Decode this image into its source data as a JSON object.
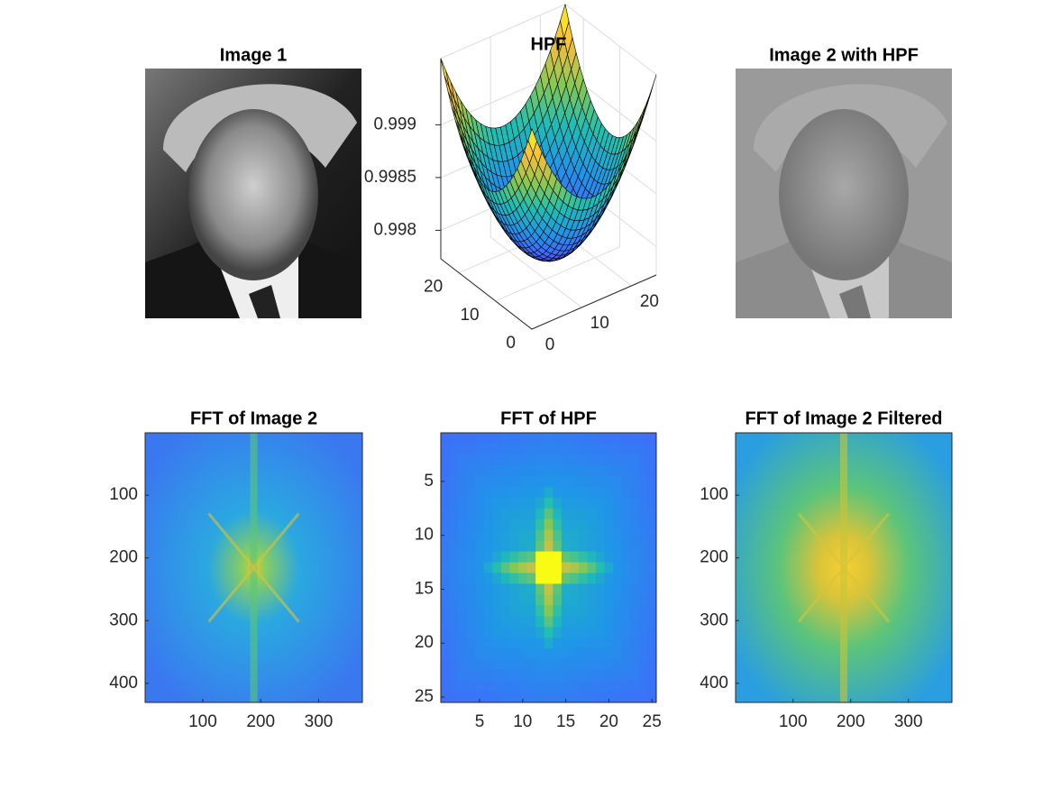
{
  "chart_data": [
    {
      "type": "image",
      "title": "Image 1",
      "colormap": "gray"
    },
    {
      "type": "surface",
      "title": "HPF",
      "xlim": [
        0,
        25
      ],
      "ylim": [
        0,
        25
      ],
      "zlim": [
        0.99773,
        0.99963
      ],
      "xticks": [
        0,
        10,
        20
      ],
      "yticks": [
        0,
        10,
        20
      ],
      "zticks": [
        0.998,
        0.9985,
        0.999
      ],
      "colormap": "parula",
      "grid": true
    },
    {
      "type": "image",
      "title": "Image 2 with HPF",
      "colormap": "gray"
    },
    {
      "type": "heatmap",
      "title": "FFT of Image 2",
      "xlim": [
        0.5,
        375.5
      ],
      "ylim": [
        0.5,
        430.5
      ],
      "xticks": [
        100,
        200,
        300
      ],
      "yticks": [
        100,
        200,
        300,
        400
      ],
      "colormap": "parula"
    },
    {
      "type": "heatmap",
      "title": "FFT of HPF",
      "xlim": [
        0.5,
        25.5
      ],
      "ylim": [
        0.5,
        25.5
      ],
      "xticks": [
        5,
        10,
        15,
        20,
        25
      ],
      "yticks": [
        5,
        10,
        15,
        20,
        25
      ],
      "colormap": "parula"
    },
    {
      "type": "heatmap",
      "title": "FFT of Image 2 Filtered",
      "xlim": [
        0.5,
        375.5
      ],
      "ylim": [
        0.5,
        430.5
      ],
      "xticks": [
        100,
        200,
        300
      ],
      "yticks": [
        100,
        200,
        300,
        400
      ],
      "colormap": "parula"
    }
  ]
}
